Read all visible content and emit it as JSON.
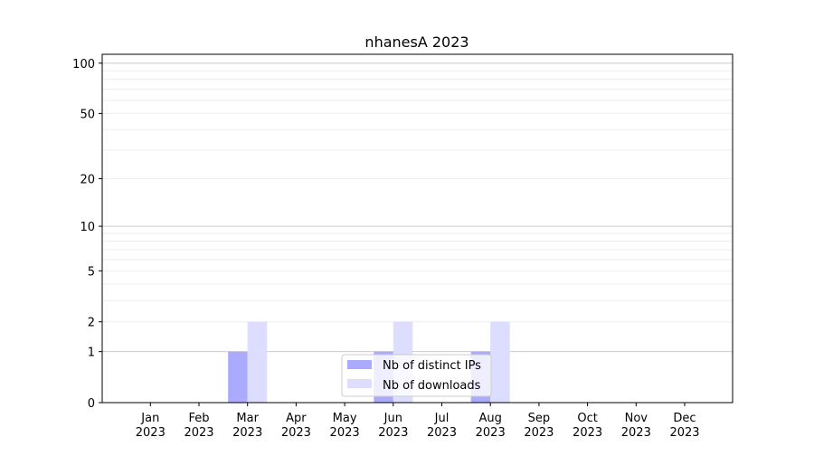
{
  "chart_data": {
    "type": "bar",
    "title": "nhanesA 2023",
    "xlabel": "",
    "ylabel": "",
    "yscale": "log(1+y)",
    "ylim": [
      0,
      113
    ],
    "yticks": [
      0,
      1,
      2,
      5,
      10,
      20,
      50,
      100
    ],
    "ytick_labels": [
      "0",
      "1",
      "2",
      "5",
      "10",
      "20",
      "50",
      "100"
    ],
    "grid": true,
    "categories": [
      "Jan\n2023",
      "Feb\n2023",
      "Mar\n2023",
      "Apr\n2023",
      "May\n2023",
      "Jun\n2023",
      "Jul\n2023",
      "Aug\n2023",
      "Sep\n2023",
      "Oct\n2023",
      "Nov\n2023",
      "Dec\n2023"
    ],
    "series": [
      {
        "name": "Nb of distinct IPs",
        "color": "#aaaaff",
        "values": [
          0,
          0,
          1,
          0,
          0,
          1,
          0,
          1,
          0,
          0,
          0,
          0
        ]
      },
      {
        "name": "Nb of downloads",
        "color": "#ddddff",
        "values": [
          0,
          0,
          2,
          0,
          0,
          2,
          0,
          2,
          0,
          0,
          0,
          0
        ]
      }
    ],
    "legend_position": "lower-center"
  }
}
